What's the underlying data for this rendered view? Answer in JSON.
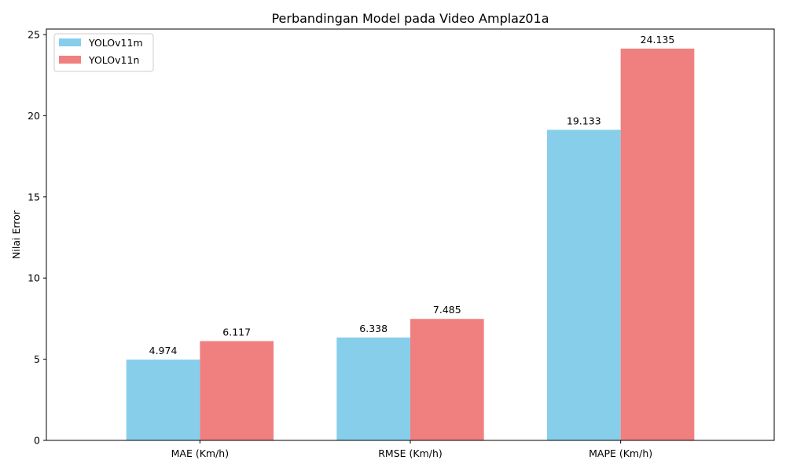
{
  "chart_data": {
    "type": "bar",
    "title": "Perbandingan Model pada Video Amplaz01a",
    "xlabel": "",
    "ylabel": "Nilai Error",
    "categories": [
      "MAE (Km/h)",
      "RMSE (Km/h)",
      "MAPE (Km/h)"
    ],
    "series": [
      {
        "name": "YOLOv11m",
        "values": [
          4.974,
          6.338,
          19.133
        ],
        "labels": [
          "4.974",
          "6.338",
          "19.133"
        ],
        "color": "#87CEEB"
      },
      {
        "name": "YOLOv11n",
        "values": [
          6.117,
          7.485,
          24.135
        ],
        "labels": [
          "6.117",
          "7.485",
          "24.135"
        ],
        "color": "#F08080"
      }
    ],
    "ylim": [
      0,
      25.34
    ],
    "yticks": [
      0,
      5,
      10,
      15,
      20,
      25
    ],
    "ytick_labels": [
      "0",
      "5",
      "10",
      "15",
      "20",
      "25"
    ],
    "grid": false,
    "legend_position": "top-left"
  }
}
